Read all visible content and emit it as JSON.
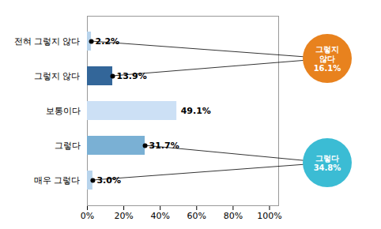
{
  "chart_data": {
    "type": "bar",
    "orientation": "horizontal",
    "categories": [
      "매우 그렇다",
      "그렇다",
      "보통이다",
      "그렇지 않다",
      "전혀 그렇지 않다"
    ],
    "values": [
      3.0,
      31.7,
      49.1,
      13.9,
      2.2
    ],
    "value_labels": [
      "3.0%",
      "31.7%",
      "49.1%",
      "13.9%",
      "2.2%"
    ],
    "data_labels": true,
    "colors": [
      "#b8d4ec",
      "#7ab0d4",
      "#cce0f5",
      "#336699",
      "#b8d4ec"
    ],
    "xlim": [
      0,
      105
    ],
    "xticks": [
      {
        "value": 0,
        "label": "0%"
      },
      {
        "value": 20,
        "label": "20%"
      },
      {
        "value": 40,
        "label": "40%"
      },
      {
        "value": 60,
        "label": "60%"
      },
      {
        "value": 80,
        "label": "80%"
      },
      {
        "value": 100,
        "label": "100%"
      }
    ],
    "grid": false,
    "annotations": [
      {
        "text": "그렇지\n않다\n16.1%",
        "color": "#e8821e",
        "categories": [
          "전혀 그렇지 않다",
          "그렇지 않다"
        ]
      },
      {
        "text": "그렇다\n34.8%",
        "color": "#3bbcd4",
        "categories": [
          "그렇다",
          "매우 그렇다"
        ]
      }
    ]
  }
}
